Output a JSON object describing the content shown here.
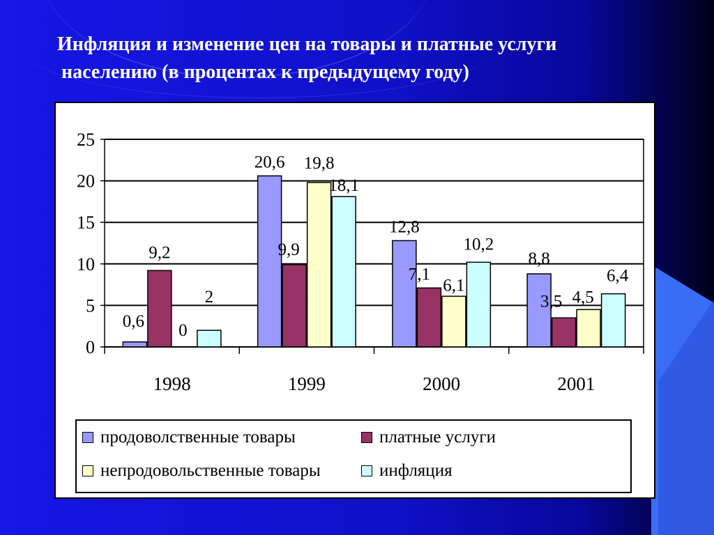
{
  "slide": {
    "title_line1": "Инфляция и изменение цен на товары и платные услуги",
    "title_line2": "населению (в процентах к предыдущему году)"
  },
  "chart_data": {
    "type": "bar",
    "title": "",
    "xlabel": "",
    "ylabel": "",
    "ylim": [
      0,
      25
    ],
    "yticks": [
      0,
      5,
      10,
      15,
      20,
      25
    ],
    "grid": true,
    "legend_position": "bottom",
    "categories": [
      "1998",
      "1999",
      "2000",
      "2001"
    ],
    "series": [
      {
        "name": "продоволственные товары",
        "color": "#9999ff",
        "values": [
          0.6,
          20.6,
          12.8,
          8.8
        ],
        "labels": [
          "0,6",
          "20,6",
          "12,8",
          "8,8"
        ]
      },
      {
        "name": "платные услуги",
        "color": "#993366",
        "values": [
          9.2,
          9.9,
          7.1,
          3.5
        ],
        "labels": [
          "9,2",
          "9,9",
          "7,1",
          "3,5"
        ]
      },
      {
        "name": "непродовольственные товары",
        "color": "#ffffcc",
        "values": [
          0,
          19.8,
          6.1,
          4.5
        ],
        "labels": [
          "0",
          "19,8",
          "6,1",
          "4,5"
        ]
      },
      {
        "name": "инфляция",
        "color": "#ccffff",
        "values": [
          2,
          18.1,
          10.2,
          6.4
        ],
        "labels": [
          "2",
          "18,1",
          "10,2",
          "6,4"
        ]
      }
    ]
  }
}
